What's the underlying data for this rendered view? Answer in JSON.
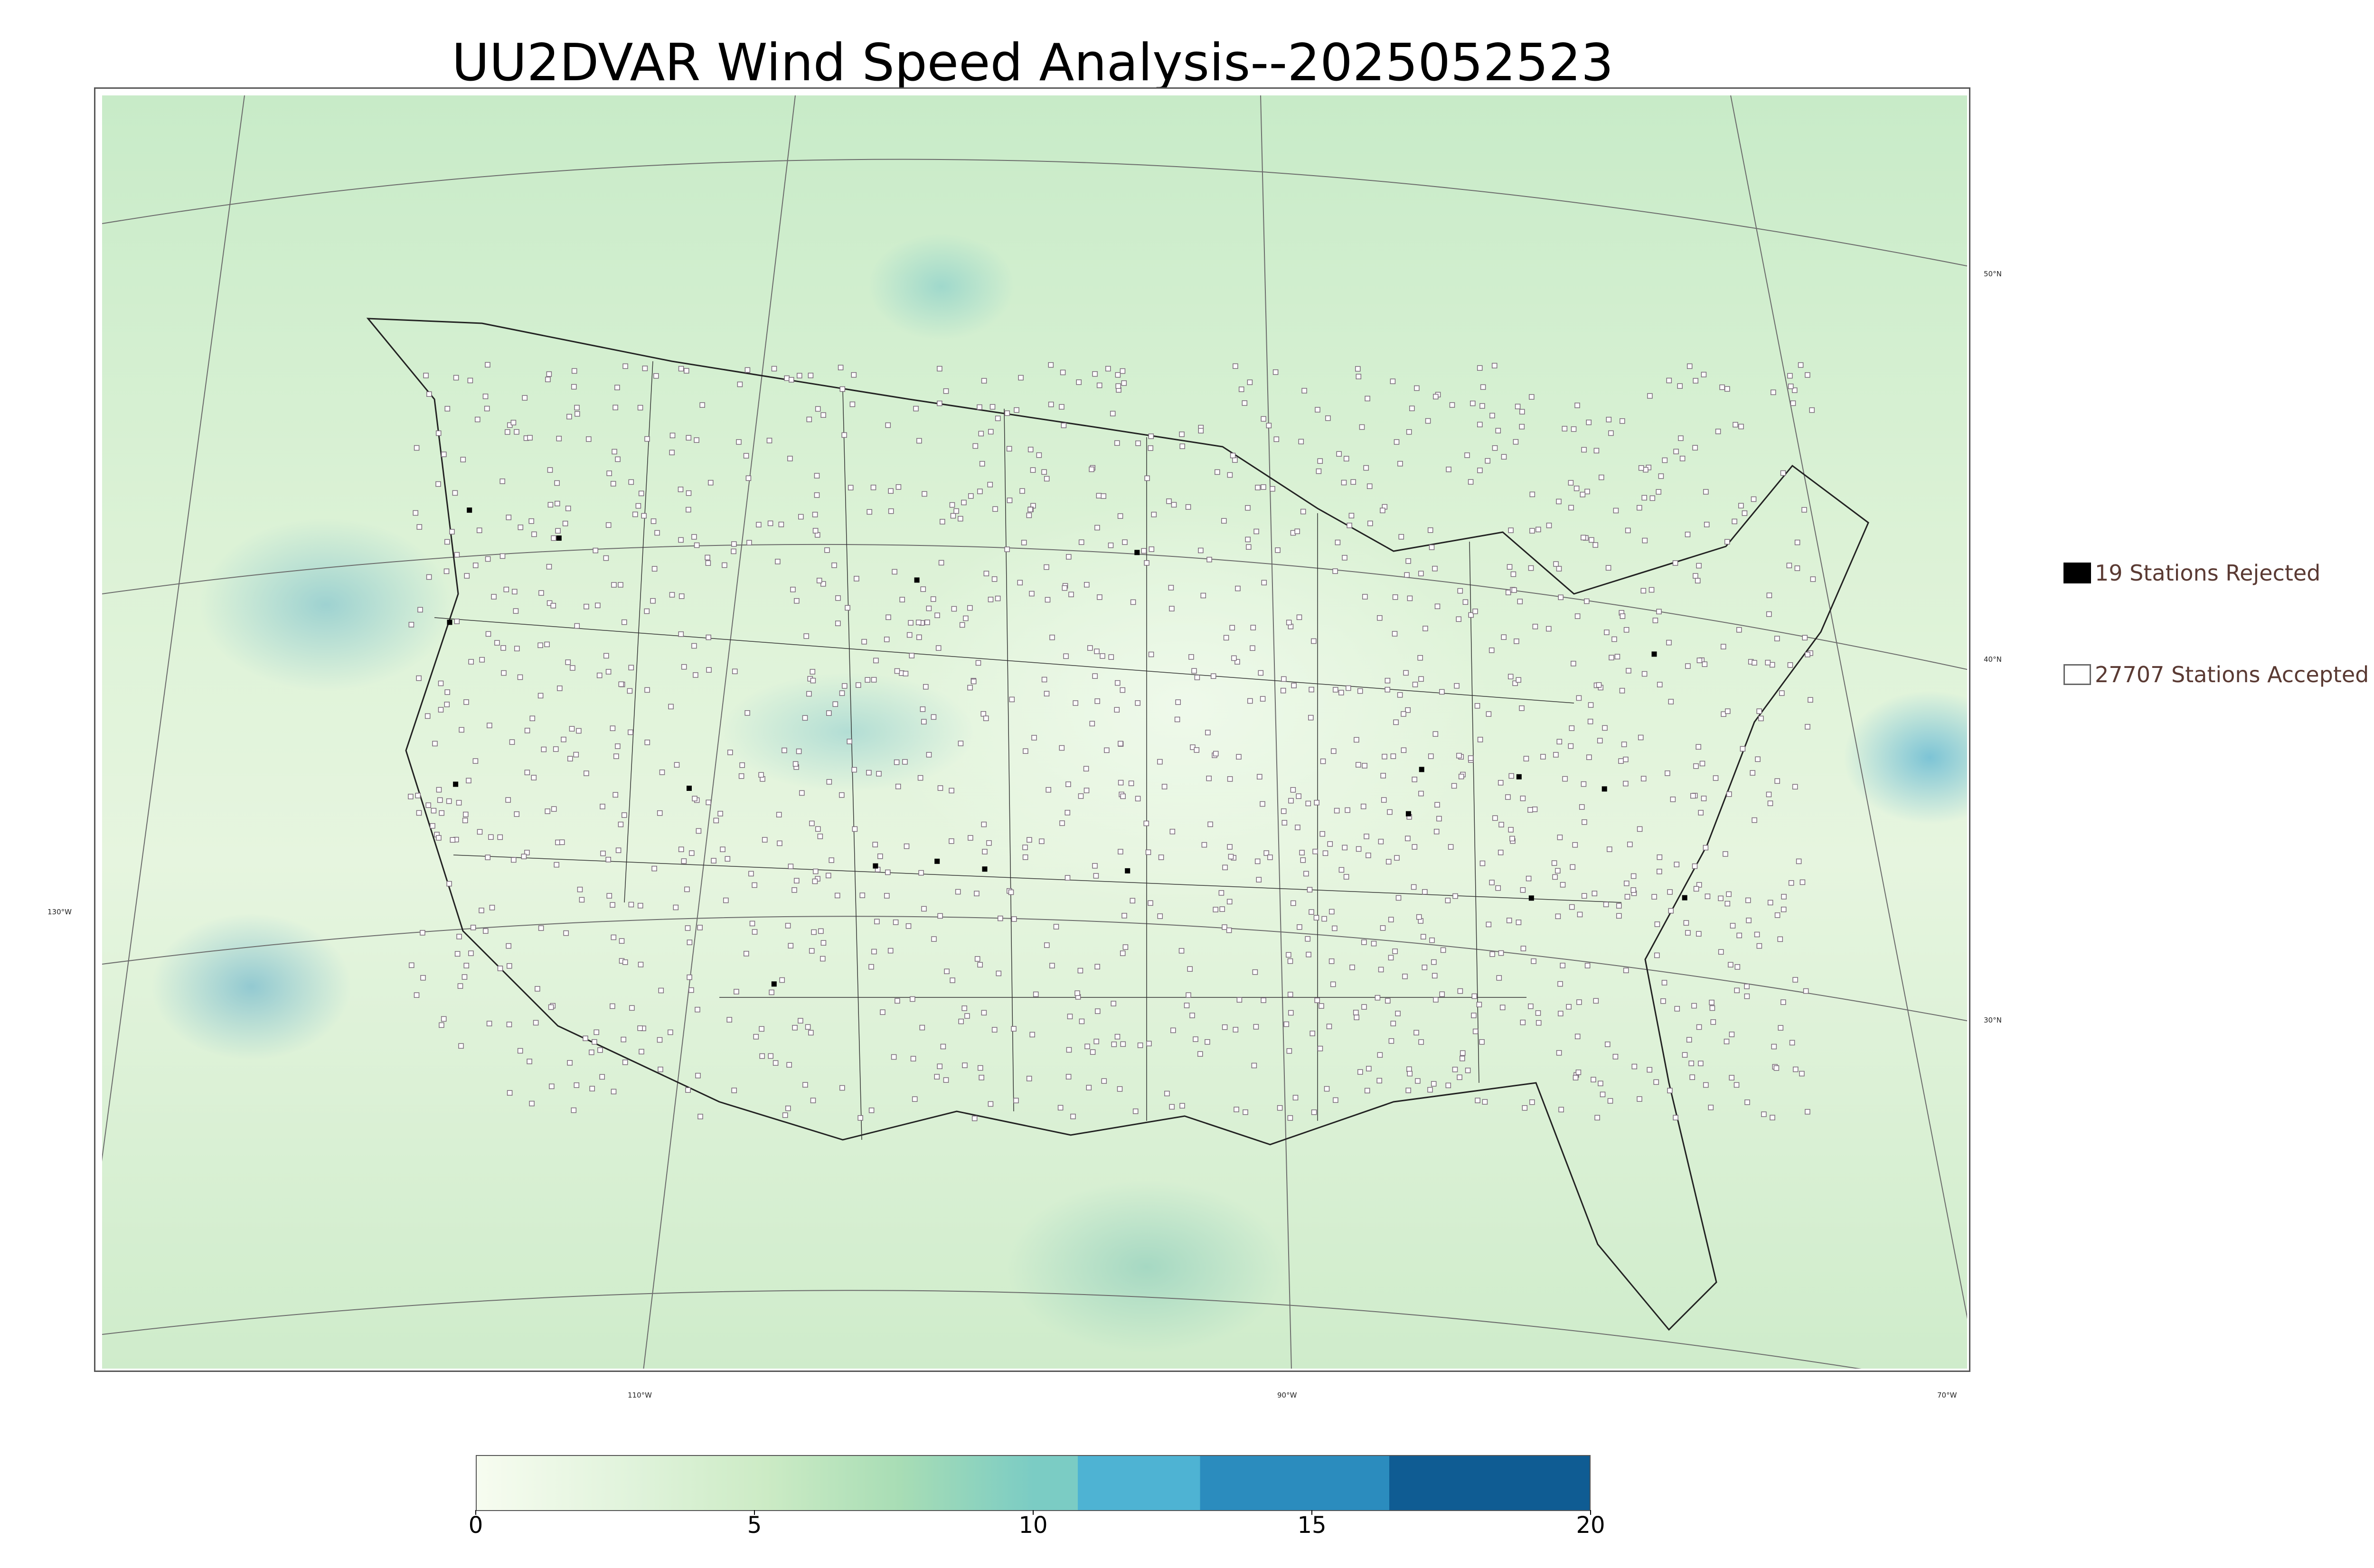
{
  "title": "UU2DVAR Wind Speed Analysis--2025052523",
  "map": {
    "projection": "lambert conformal",
    "latitude_labels": [
      "50°N",
      "40°N",
      "30°N"
    ],
    "longitude_labels": [
      "130°W",
      "110°W",
      "90°W",
      "70°W"
    ]
  },
  "legend": {
    "rejected_label": "19 Stations Rejected",
    "accepted_label": "27707 Stations Accepted",
    "rejected_color": "#000000",
    "accepted_color": "#ffffff"
  },
  "colorbar": {
    "min": 0,
    "max": 20,
    "ticks": [
      "0",
      "5",
      "10",
      "15",
      "20"
    ],
    "colors": [
      "#f7fcf0",
      "#e0f3db",
      "#ccebc5",
      "#a8ddb5",
      "#7bccc4",
      "#4eb3d3",
      "#2b8cbe",
      "#0f5c93"
    ]
  }
}
